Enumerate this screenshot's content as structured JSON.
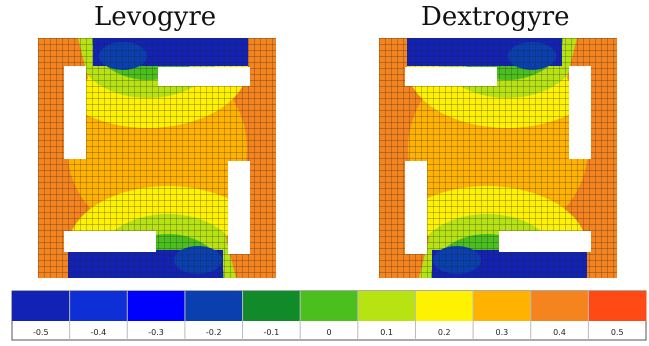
{
  "titles": {
    "left": "Levogyre",
    "right": "Dextrogyre"
  },
  "colorbar": {
    "labels": [
      "-0.5",
      "-0.4",
      "-0.3",
      "-0.2",
      "-0.1",
      "0",
      "0.1",
      "0.2",
      "0.3",
      "0.4",
      "0.5"
    ],
    "colors": [
      "#1222b4",
      "#0f2fd6",
      "#0000ff",
      "#0a3fb0",
      "#118a2a",
      "#4bbf1e",
      "#b7e313",
      "#fff200",
      "#ffb300",
      "#f5841f",
      "#ff4a16"
    ]
  }
}
